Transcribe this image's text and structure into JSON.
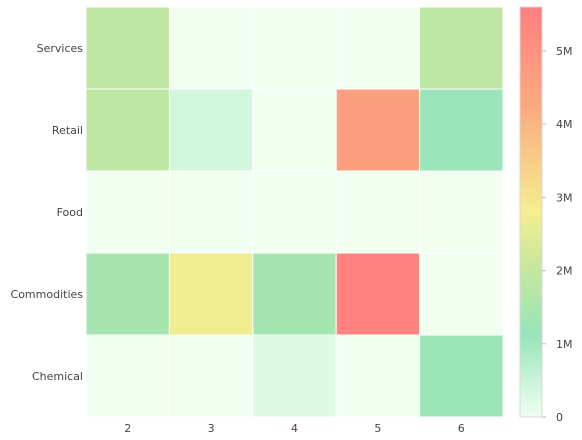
{
  "chart_data": {
    "type": "heatmap",
    "x": [
      "2",
      "3",
      "4",
      "5",
      "6"
    ],
    "y": [
      "Chemical",
      "Commodities",
      "Food",
      "Retail",
      "Services"
    ],
    "z": [
      [
        0,
        0,
        250000,
        0,
        1200000
      ],
      [
        1400000,
        2700000,
        1350000,
        5500000,
        0
      ],
      [
        0,
        0,
        0,
        0,
        0
      ],
      [
        1850000,
        400000,
        0,
        4600000,
        1100000
      ],
      [
        1850000,
        0,
        0,
        0,
        1850000
      ]
    ],
    "zmin": 0,
    "zmax": 5600000,
    "colorscale": [
      [
        0.0,
        "#f0fff0"
      ],
      [
        0.2,
        "#98e5b8"
      ],
      [
        0.35,
        "#c2e6a0"
      ],
      [
        0.5,
        "#f5ee8e"
      ],
      [
        0.75,
        "#fbab80"
      ],
      [
        1.0,
        "#ff7f7f"
      ]
    ],
    "colorbar": {
      "tick_values": [
        0,
        1000000,
        2000000,
        3000000,
        4000000,
        5000000
      ],
      "tick_labels": [
        "0",
        "1M",
        "2M",
        "3M",
        "4M",
        "5M"
      ]
    },
    "cell_gap_color": "#ffffff"
  }
}
